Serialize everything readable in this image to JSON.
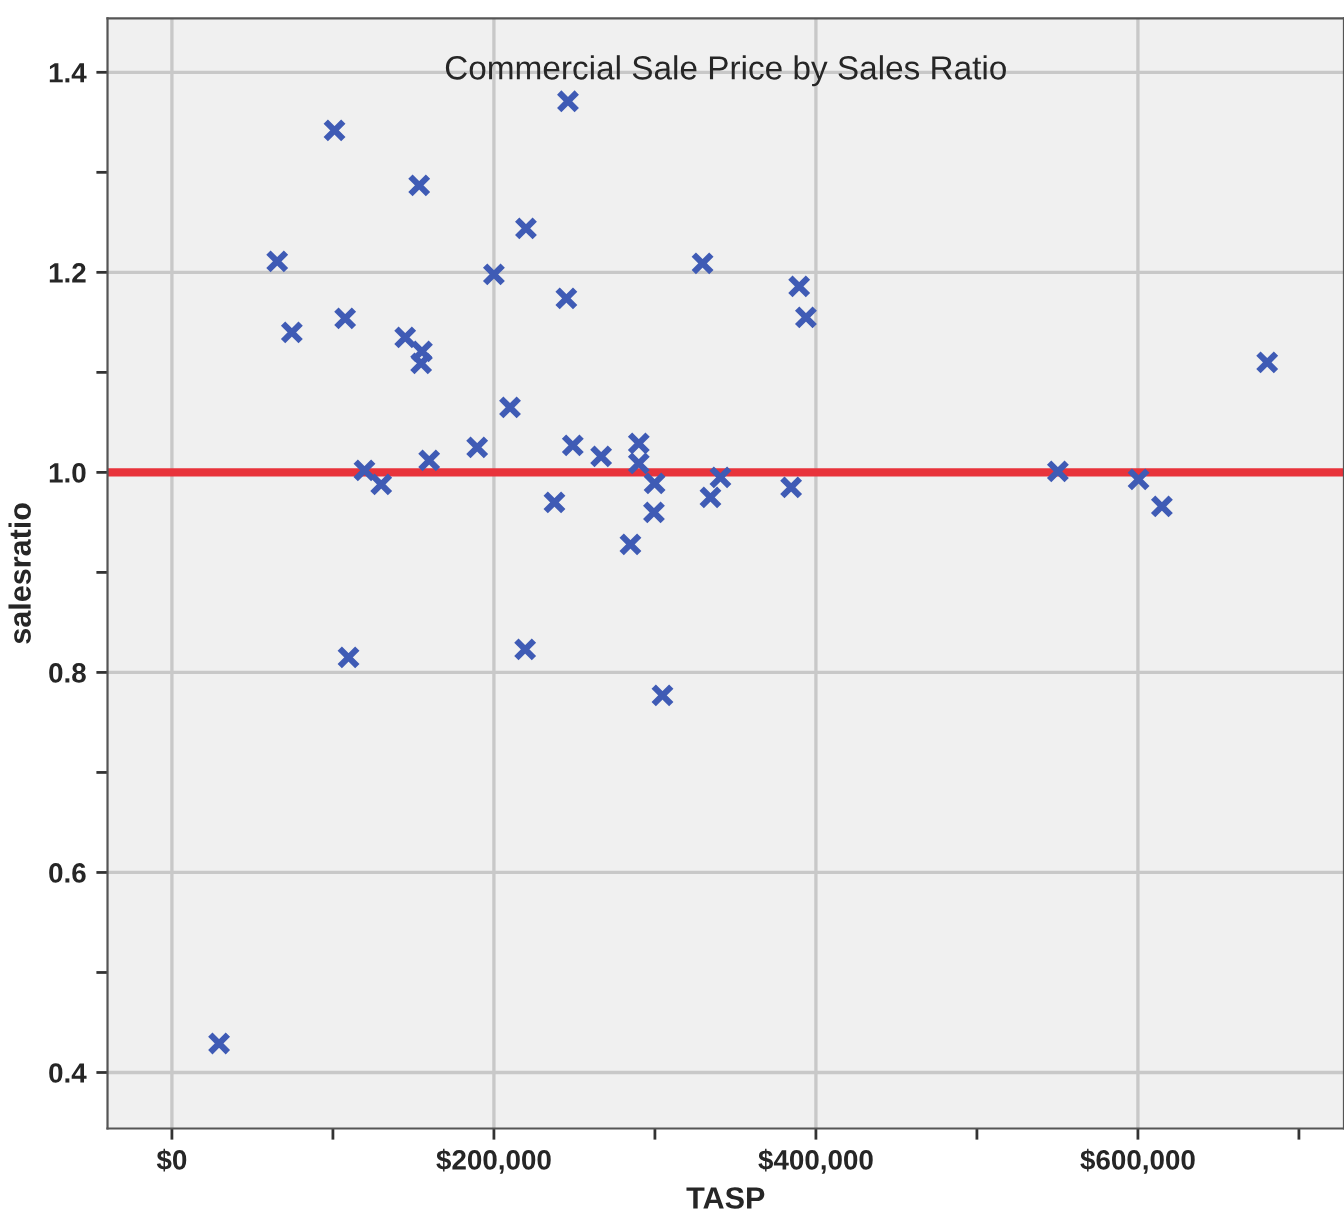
{
  "chart_data": {
    "type": "scatter",
    "title": "Commercial Sale Price by Sales Ratio",
    "xlabel": "TASP",
    "ylabel": "salesratio",
    "x": [
      101000,
      153600,
      219900,
      246000,
      65400,
      200000,
      329600,
      74500,
      107600,
      144900,
      155300,
      154800,
      245000,
      210000,
      189600,
      159800,
      119600,
      130000,
      249000,
      266600,
      290000,
      290000,
      299800,
      299400,
      237600,
      284800,
      334500,
      340700,
      389600,
      393800,
      384600,
      550300,
      600400,
      614900,
      680300,
      109700,
      219400,
      304700,
      29300
    ],
    "series": [
      {
        "color": "#3f5bb5",
        "values": [
          1.342,
          1.287,
          1.244,
          1.371,
          1.211,
          1.198,
          1.209,
          1.14,
          1.154,
          1.135,
          1.121,
          1.109,
          1.174,
          1.065,
          1.025,
          1.012,
          1.002,
          0.988,
          1.027,
          1.016,
          1.029,
          1.009,
          0.989,
          0.96,
          0.97,
          0.928,
          0.975,
          0.995,
          1.186,
          1.155,
          0.985,
          1.001,
          0.993,
          0.966,
          1.11,
          0.815,
          0.823,
          0.777,
          0.429
        ]
      }
    ],
    "marker": "cross",
    "grid": true,
    "legend": false,
    "xlim": [
      -40000,
      728000
    ],
    "ylim": [
      0.344,
      1.454
    ],
    "xticks": [
      {
        "value": 0,
        "label": "$0"
      },
      {
        "value": 100000,
        "label": null
      },
      {
        "value": 200000,
        "label": "$200,000"
      },
      {
        "value": 300000,
        "label": null
      },
      {
        "value": 400000,
        "label": "$400,000"
      },
      {
        "value": 500000,
        "label": null
      },
      {
        "value": 600000,
        "label": "$600,000"
      },
      {
        "value": 700000,
        "label": null
      }
    ],
    "yticks": [
      {
        "value": 0.4,
        "label": "0.4"
      },
      {
        "value": 0.5,
        "label": null
      },
      {
        "value": 0.6,
        "label": "0.6"
      },
      {
        "value": 0.7,
        "label": null
      },
      {
        "value": 0.8,
        "label": "0.8"
      },
      {
        "value": 0.9,
        "label": null
      },
      {
        "value": 1.0,
        "label": "1.0"
      },
      {
        "value": 1.1,
        "label": null
      },
      {
        "value": 1.2,
        "label": "1.2"
      },
      {
        "value": 1.3,
        "label": null
      },
      {
        "value": 1.4,
        "label": "1.4"
      }
    ],
    "ref_lines": [
      {
        "axis": "y",
        "value": 1.0,
        "color": "#e8333b",
        "line_style": "solid"
      }
    ]
  }
}
